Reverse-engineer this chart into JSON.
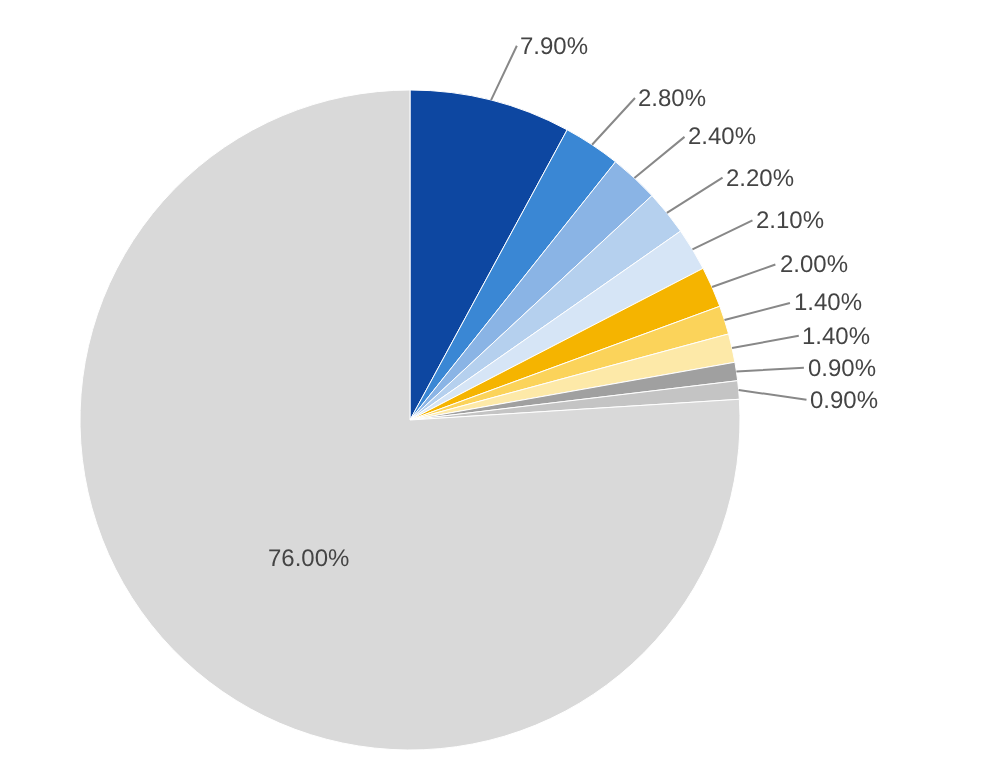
{
  "chart_data": {
    "type": "pie",
    "categories": [
      null,
      null,
      null,
      null,
      null,
      null,
      null,
      null,
      null,
      null,
      null
    ],
    "values": [
      7.9,
      2.8,
      2.4,
      2.2,
      2.1,
      2.0,
      1.4,
      1.4,
      0.9,
      0.9,
      76.0
    ],
    "value_labels": [
      "7.90%",
      "2.80%",
      "2.40%",
      "2.20%",
      "2.10%",
      "2.00%",
      "1.40%",
      "1.40%",
      "0.90%",
      "0.90%",
      "76.00%"
    ],
    "colors": [
      "#0d47a1",
      "#3a87d4",
      "#8ab4e5",
      "#b5d0ee",
      "#d6e5f6",
      "#f5b400",
      "#fbd35a",
      "#fde9a8",
      "#a0a0a0",
      "#c4c4c4",
      "#d9d9d9"
    ],
    "legend": false
  }
}
